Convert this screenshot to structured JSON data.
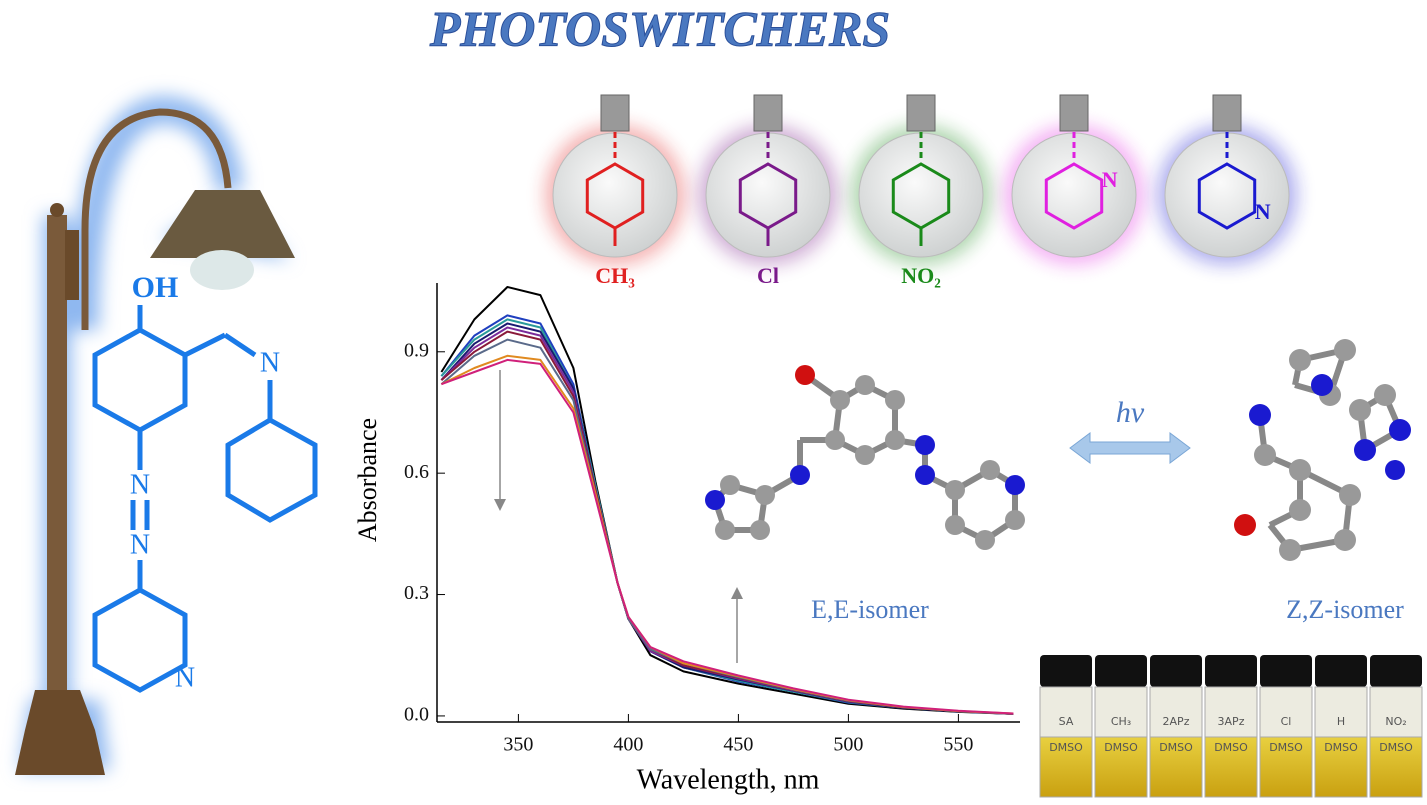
{
  "chart_data": {
    "type": "line",
    "x_label": "Wavelength, nm",
    "y_label": "Absorbance",
    "x": [
      315,
      330,
      345,
      360,
      375,
      385,
      395,
      400,
      410,
      425,
      450,
      475,
      500,
      525,
      550,
      575
    ],
    "series": [
      {
        "color": "#000000",
        "values": [
          0.85,
          0.98,
          1.06,
          1.04,
          0.86,
          0.58,
          0.33,
          0.24,
          0.15,
          0.11,
          0.08,
          0.055,
          0.03,
          0.018,
          0.01,
          0.005
        ]
      },
      {
        "color": "#1f3fbf",
        "values": [
          0.84,
          0.94,
          0.99,
          0.97,
          0.82,
          0.57,
          0.33,
          0.24,
          0.16,
          0.12,
          0.085,
          0.06,
          0.033,
          0.02,
          0.011,
          0.005
        ]
      },
      {
        "color": "#2a9a9a",
        "values": [
          0.84,
          0.93,
          0.98,
          0.96,
          0.81,
          0.57,
          0.33,
          0.24,
          0.16,
          0.12,
          0.087,
          0.06,
          0.034,
          0.02,
          0.011,
          0.005
        ]
      },
      {
        "color": "#1a1a70",
        "values": [
          0.83,
          0.92,
          0.97,
          0.95,
          0.81,
          0.56,
          0.33,
          0.24,
          0.16,
          0.12,
          0.09,
          0.062,
          0.035,
          0.02,
          0.011,
          0.005
        ]
      },
      {
        "color": "#7a2a9a",
        "values": [
          0.83,
          0.91,
          0.96,
          0.94,
          0.8,
          0.56,
          0.33,
          0.24,
          0.16,
          0.125,
          0.092,
          0.063,
          0.036,
          0.021,
          0.012,
          0.005
        ]
      },
      {
        "color": "#8a1a3a",
        "values": [
          0.83,
          0.9,
          0.95,
          0.93,
          0.79,
          0.56,
          0.33,
          0.24,
          0.165,
          0.125,
          0.094,
          0.064,
          0.037,
          0.021,
          0.012,
          0.005
        ]
      },
      {
        "color": "#5a6a8a",
        "values": [
          0.82,
          0.89,
          0.93,
          0.91,
          0.78,
          0.55,
          0.33,
          0.24,
          0.165,
          0.13,
          0.096,
          0.065,
          0.038,
          0.022,
          0.012,
          0.005
        ]
      },
      {
        "color": "#e08a20",
        "values": [
          0.82,
          0.86,
          0.89,
          0.88,
          0.76,
          0.55,
          0.33,
          0.245,
          0.17,
          0.13,
          0.098,
          0.066,
          0.039,
          0.022,
          0.012,
          0.006
        ]
      },
      {
        "color": "#d0207a",
        "values": [
          0.82,
          0.85,
          0.88,
          0.87,
          0.75,
          0.54,
          0.33,
          0.245,
          0.17,
          0.135,
          0.1,
          0.068,
          0.04,
          0.023,
          0.013,
          0.006
        ]
      }
    ],
    "xlim": [
      313,
      578
    ],
    "ylim": [
      -0.015,
      1.07
    ],
    "xticks": [
      350,
      400,
      450,
      500,
      550
    ],
    "yticks": [
      {
        "value": 0,
        "label": "0.0"
      },
      0.3,
      0.6,
      0.9
    ]
  },
  "graphic": {
    "title": "PHOTOSWITCHERS",
    "structure_labels": [
      "OH",
      "N",
      "N",
      "N",
      "N"
    ],
    "bulbs": [
      {
        "label": "CH₃",
        "color": "#e02020"
      },
      {
        "label": "Cl",
        "color": "#7a1a8a"
      },
      {
        "label": "NO₂",
        "color": "#1a8a1a"
      },
      {
        "label": "N",
        "color": "#e020e0"
      },
      {
        "label": "N",
        "color": "#1a1ad0"
      }
    ],
    "light_label": "hν",
    "isomer_left": "E,E-isomer",
    "isomer_right": "Z,Z-isomer",
    "vials": [
      "SA",
      "CH₃",
      "2APz",
      "3APz",
      "Cl",
      "H",
      "NO₂"
    ],
    "solvent": "DMSO"
  }
}
